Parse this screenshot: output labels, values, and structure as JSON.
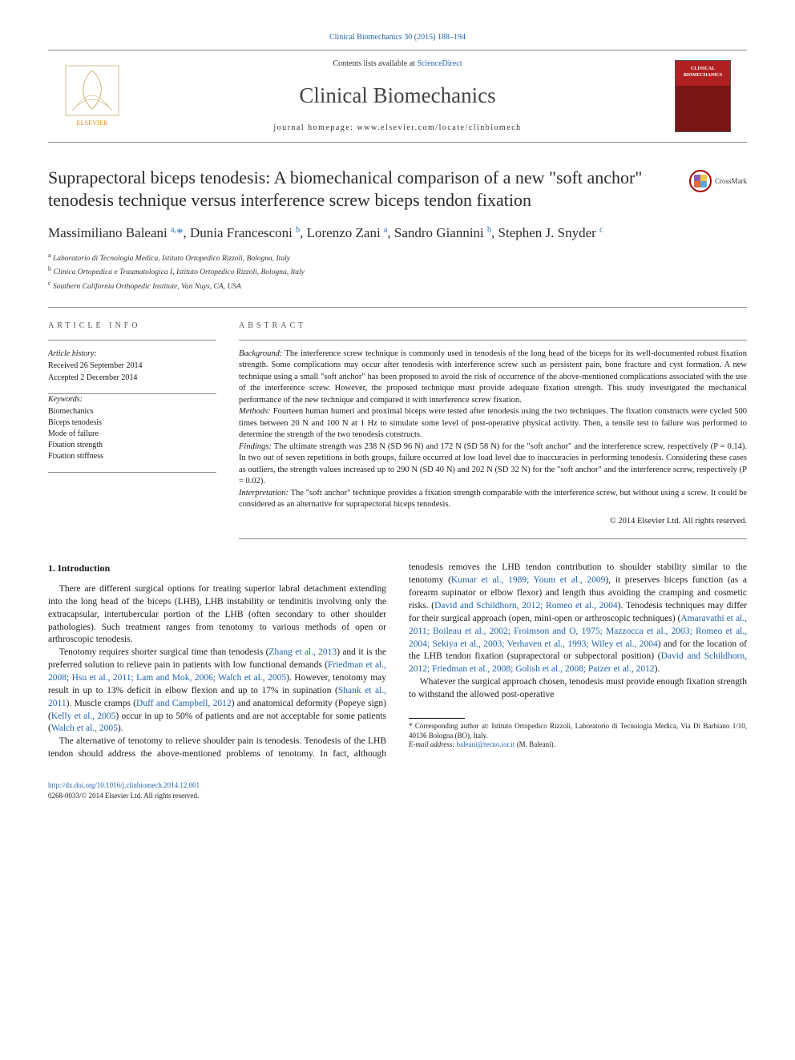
{
  "citation": "Clinical Biomechanics 30 (2015) 188–194",
  "header": {
    "contents_prefix": "Contents lists available at ",
    "contents_link": "ScienceDirect",
    "journal": "Clinical Biomechanics",
    "homepage_label": "journal homepage: ",
    "homepage_url": "www.elsevier.com/locate/clinbiomech",
    "cover_text": "CLINICAL BIOMECHANICS"
  },
  "title": "Suprapectoral biceps tenodesis: A biomechanical comparison of a new \"soft anchor\" tenodesis technique versus interference screw biceps tendon fixation",
  "crossmark_label": "CrossMark",
  "authors_html": "Massimiliano Baleani <sup>a,</sup><span class='ast'>*</span>, Dunia Francesconi <sup>b</sup>, Lorenzo Zani <sup>a</sup>, Sandro Giannini <sup>b</sup>, Stephen J. Snyder <sup>c</sup>",
  "affiliations": [
    {
      "key": "a",
      "text": "Laboratorio di Tecnologia Medica, Istituto Ortopedico Rizzoli, Bologna, Italy"
    },
    {
      "key": "b",
      "text": "Clinica Ortopedica e Traumatologica I, Istituto Ortopedico Rizzoli, Bologna, Italy"
    },
    {
      "key": "c",
      "text": "Southern California Orthopedic Institute, Van Nuys, CA, USA"
    }
  ],
  "article_info": {
    "label": "ARTICLE INFO",
    "history_head": "Article history:",
    "received": "Received 26 September 2014",
    "accepted": "Accepted 2 December 2014",
    "keywords_head": "Keywords:",
    "keywords": [
      "Biomechanics",
      "Biceps tenodesis",
      "Mode of failure",
      "Fixation strength",
      "Fixation stiffness"
    ]
  },
  "abstract": {
    "label": "ABSTRACT",
    "segments": [
      {
        "head": "Background:",
        "text": " The interference screw technique is commonly used in tenodesis of the long head of the biceps for its well-documented robust fixation strength. Some complications may occur after tenodesis with interference screw such as persistent pain, bone fracture and cyst formation. A new technique using a small \"soft anchor\" has been proposed to avoid the risk of occurrence of the above-mentioned complications associated with the use of the interference screw. However, the proposed technique must provide adequate fixation strength. This study investigated the mechanical performance of the new technique and compared it with interference screw fixation."
      },
      {
        "head": "Methods:",
        "text": " Fourteen human humeri and proximal biceps were tested after tenodesis using the two techniques. The fixation constructs were cycled 500 times between 20 N and 100 N at 1 Hz to simulate some level of post-operative physical activity. Then, a tensile test to failure was performed to determine the strength of the two tenodesis constructs."
      },
      {
        "head": "Findings:",
        "text": " The ultimate strength was 238 N (SD 96 N) and 172 N (SD 58 N) for the \"soft anchor\" and the interference screw, respectively (P = 0.14). In two out of seven repetitions in both groups, failure occurred at low load level due to inaccuracies in performing tenodesis. Considering these cases as outliers, the strength values increased up to 290 N (SD 40 N) and 202 N (SD 32 N) for the \"soft anchor\" and the interference screw, respectively (P = 0.02)."
      },
      {
        "head": "Interpretation:",
        "text": " The \"soft anchor\" technique provides a fixation strength comparable with the interference screw, but without using a screw. It could be considered as an alternative for suprapectoral biceps tenodesis."
      }
    ],
    "copyright": "© 2014 Elsevier Ltd. All rights reserved."
  },
  "body": {
    "heading": "1. Introduction",
    "p1": "There are different surgical options for treating superior labral detachment extending into the long head of the biceps (LHB), LHB instability or tendinitis involving only the extracapsular, intertubercular portion of the LHB (often secondary to other shoulder pathologies). Such treatment ranges from tenotomy to various methods of open or arthroscopic tenodesis.",
    "p2a": "Tenotomy requires shorter surgical time than tenodesis (",
    "p2r1": "Zhang et al., 2013",
    "p2b": ") and it is the preferred solution to relieve pain in patients with low functional demands (",
    "p2r2": "Friedman et al., 2008; Hsu et al., 2011; Lam and Mok, 2006; Walch et al., 2005",
    "p2c": "). However, tenotomy may result in up to 13% deficit in elbow flexion and up to 17% in supination (",
    "p2r3": "Shank et al., 2011",
    "p2d": "). Muscle cramps (",
    "p2r4": "Duff and Campbell, 2012",
    "p2e": ") and anatomical deformity (Popeye sign) (",
    "p2r5": "Kelly et al., 2005",
    "p2f": ") occur in up to 50% of patients and are not acceptable for some patients (",
    "p2r6": "Walch et al., 2005",
    "p2g": ").",
    "p3a": "The alternative of tenotomy to relieve shoulder pain is tenodesis. Tenodesis of the LHB tendon should address the above-mentioned problems of tenotomy. In fact, although tenodesis removes the LHB tendon contribution to shoulder stability similar to the tenotomy (",
    "p3r1": "Kumar et al., 1989; Youm et al., 2009",
    "p3b": "), it preserves biceps function (as a forearm supinator or elbow flexor) and length thus avoiding the cramping and cosmetic risks. (",
    "p3r2": "David and Schildhorn, 2012; Romeo et al., 2004",
    "p3c": "). Tenodesis techniques may differ for their surgical approach (open, mini-open or arthroscopic techniques) (",
    "p3r3": "Amaravathi et al., 2011; Boileau et al., 2002; Froimson and O, 1975; Mazzocca et al., 2003; Romeo et al., 2004; Sekiya et al., 2003; Verhaven et al., 1993; Wiley et al., 2004",
    "p3d": ") and for the location of the LHB tendon fixation (suprapectoral or subpectoral position) (",
    "p3r4": "David and Schildhorn, 2012; Friedman et al., 2008; Golish et al., 2008; Patzer et al., 2012",
    "p3e": ").",
    "p4": "Whatever the surgical approach chosen, tenodesis must provide enough fixation strength to withstand the allowed post-operative"
  },
  "footnote": {
    "corr": "* Corresponding author at: Istituto Ortopedico Rizzoli, Laboratorio di Tecnologia Medica, Via Di Barbiano 1/10, 40136 Bologna (BO), Italy.",
    "email_label": "E-mail address: ",
    "email": "baleani@tecno.ior.it",
    "email_tail": " (M. Baleani)."
  },
  "footer": {
    "doi": "http://dx.doi.org/10.1016/j.clinbiomech.2014.12.001",
    "issn": "0268-0033/© 2014 Elsevier Ltd. All rights reserved."
  },
  "colors": {
    "link": "#2265b0",
    "text": "#1a1a1a",
    "rule": "#888888"
  }
}
